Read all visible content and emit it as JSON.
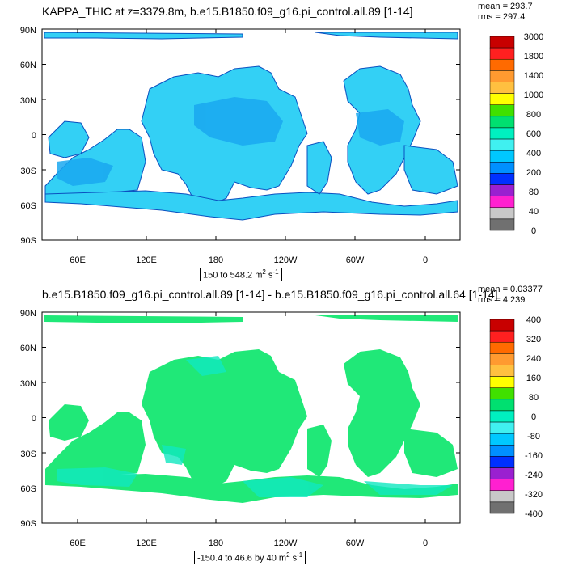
{
  "top": {
    "title": "KAPPA_THIC at z=3379.8m, b.e15.B1850.f09_g16.pi_control.all.89 [1-14]",
    "mean": "mean = 293.7",
    "rms": "rms = 297.4",
    "range_prefix": "150 to 548.2 m",
    "range_sup": "2",
    "range_mid": " s",
    "range_sup2": "-1",
    "colorbar_labels": [
      "3000",
      "1800",
      "1400",
      "1000",
      "800",
      "600",
      "400",
      "200",
      "80",
      "40",
      "0"
    ],
    "colorbar_colors": [
      "#c80000",
      "#ff2020",
      "#ff6a00",
      "#ff9a30",
      "#ffc040",
      "#ffff00",
      "#40e000",
      "#00e070",
      "#00f0c0",
      "#40f0f0",
      "#00c8ff",
      "#0090ff",
      "#0030ff",
      "#9a20d0",
      "#ff20d0",
      "#c8c8c8",
      "#707070"
    ]
  },
  "bottom": {
    "title": "b.e15.B1850.f09_g16.pi_control.all.89 [1-14] - b.e15.B1850.f09_g16.pi_control.all.64 [1-14]",
    "mean": "mean = 0.03377",
    "rms": "rms = 4.239",
    "range_prefix": "-150.4 to 46.6 by 40 m",
    "range_sup": "2",
    "range_mid": " s",
    "range_sup2": "-1",
    "colorbar_labels": [
      "400",
      "320",
      "240",
      "160",
      "80",
      "0",
      "-80",
      "-160",
      "-240",
      "-320",
      "-400"
    ],
    "colorbar_colors": [
      "#c80000",
      "#ff2020",
      "#ff6a00",
      "#ff9a30",
      "#ffc040",
      "#ffff00",
      "#40e000",
      "#00e070",
      "#00f0c0",
      "#40f0f0",
      "#00c8ff",
      "#0090ff",
      "#0030ff",
      "#9a20d0",
      "#ff20d0",
      "#c8c8c8",
      "#707070"
    ]
  },
  "axes": {
    "lat_labels": [
      "90N",
      "60N",
      "30N",
      "0",
      "30S",
      "60S",
      "90S"
    ],
    "lon_labels": [
      "60E",
      "120E",
      "180",
      "120W",
      "60W",
      "0"
    ]
  },
  "colors": {
    "top_ocean": "#33d0f5",
    "top_ocean_dark": "#1aa8f0",
    "bottom_ocean": "#20e878",
    "bottom_ocean_alt": "#10e8c0"
  }
}
